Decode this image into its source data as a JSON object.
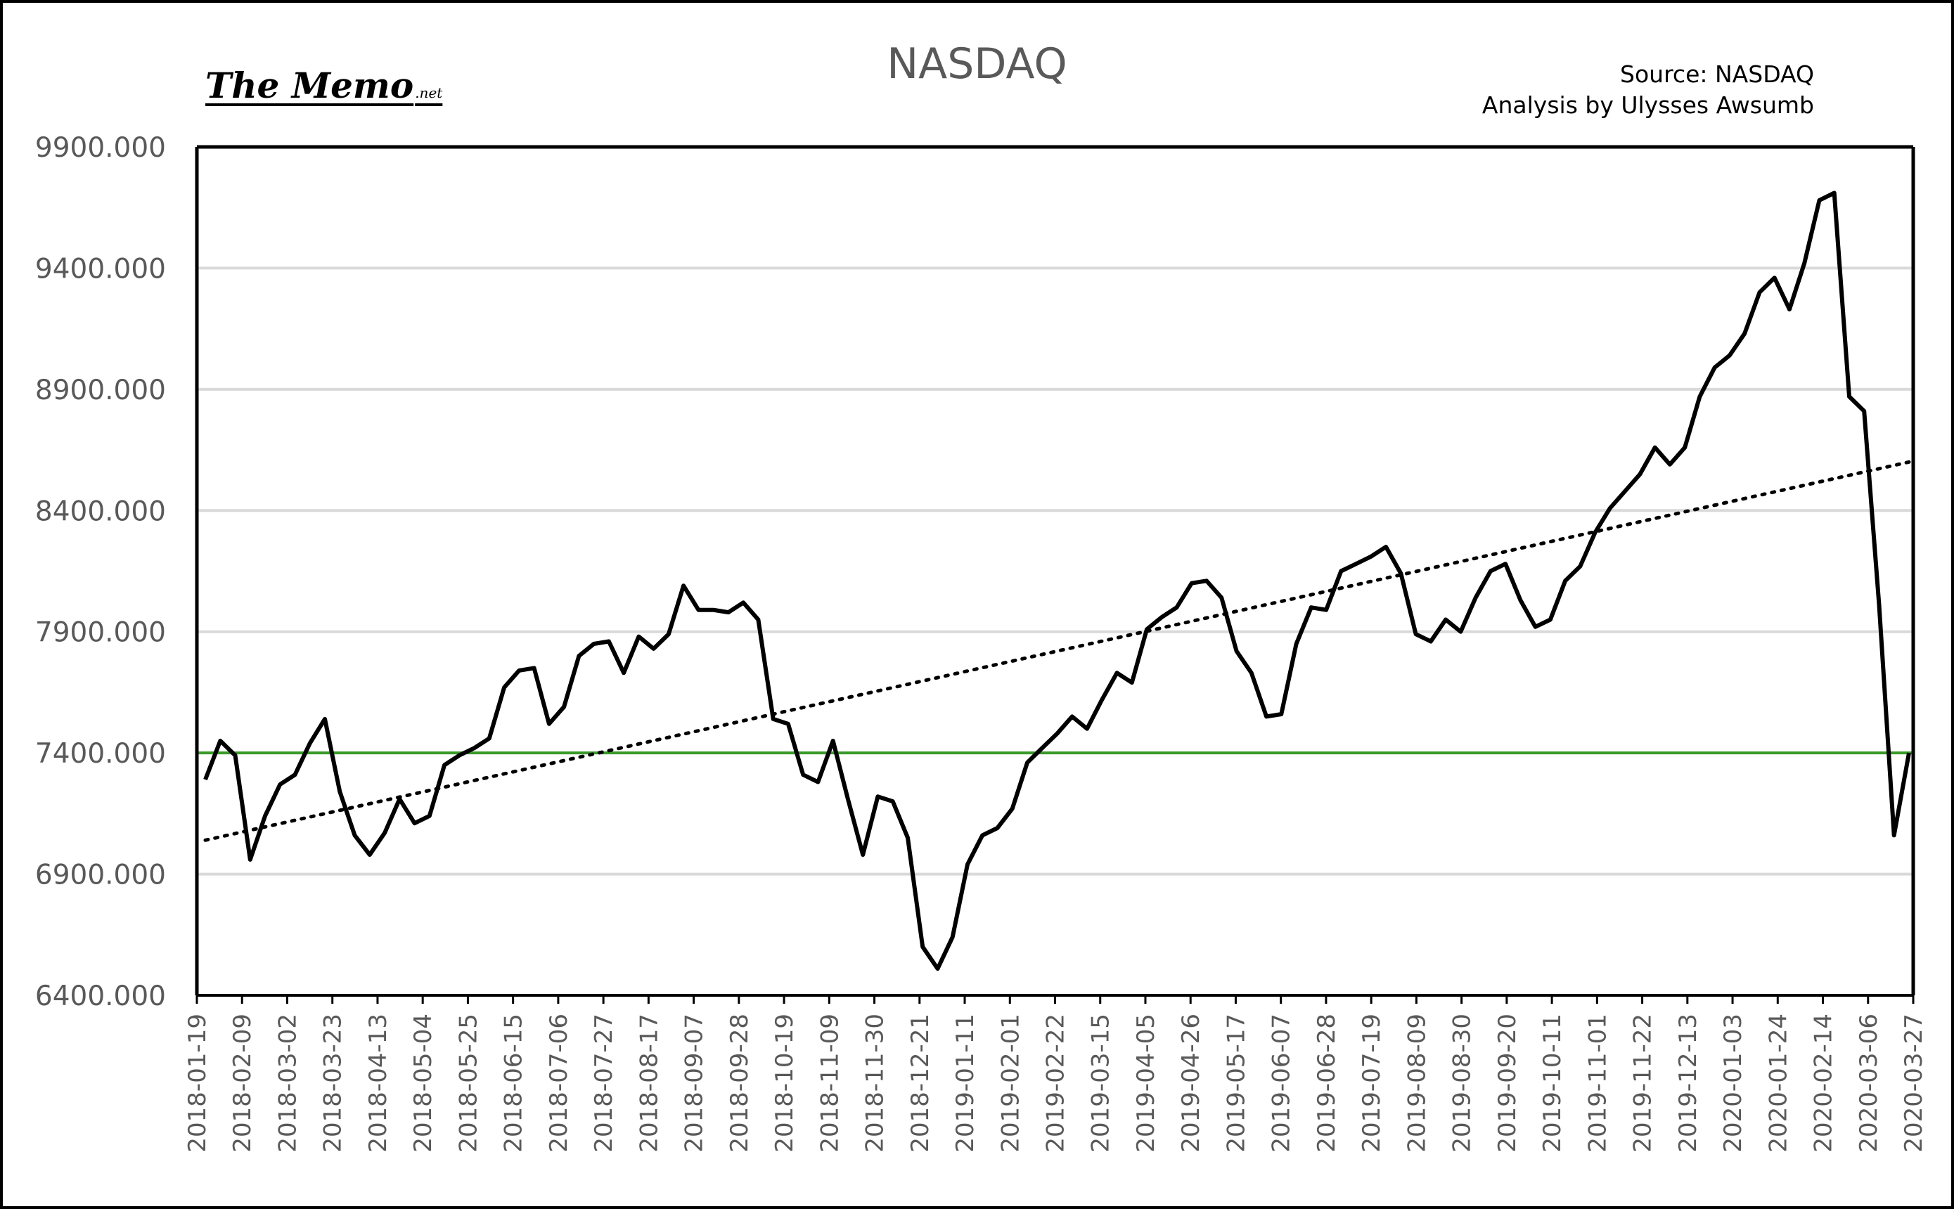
{
  "logo": {
    "text": "The Memo",
    "suffix": ".net"
  },
  "chart_data": {
    "type": "line",
    "title": "NASDAQ",
    "source_line1": "Source: NASDAQ",
    "source_line2": "Analysis by Ulysses Awsumb",
    "ylim": [
      6400,
      9900
    ],
    "yticks": [
      "9900.000",
      "9400.000",
      "8900.000",
      "8400.000",
      "7900.000",
      "7400.000",
      "6900.000",
      "6400.000"
    ],
    "ytick_values": [
      9900,
      9400,
      8900,
      8400,
      7900,
      7400,
      6900,
      6400
    ],
    "xtick_labels": [
      "2018-01-19",
      "2018-02-09",
      "2018-03-02",
      "2018-03-23",
      "2018-04-13",
      "2018-05-04",
      "2018-05-25",
      "2018-06-15",
      "2018-07-06",
      "2018-07-27",
      "2018-08-17",
      "2018-09-07",
      "2018-09-28",
      "2018-10-19",
      "2018-11-09",
      "2018-11-30",
      "2018-12-21",
      "2019-01-11",
      "2019-02-01",
      "2019-02-22",
      "2019-03-15",
      "2019-04-05",
      "2019-04-26",
      "2019-05-17",
      "2019-06-07",
      "2019-06-28",
      "2019-07-19",
      "2019-08-09",
      "2019-08-30",
      "2019-09-20",
      "2019-10-11",
      "2019-11-01",
      "2019-11-22",
      "2019-12-13",
      "2020-01-03",
      "2020-01-24",
      "2020-02-14",
      "2020-03-06",
      "2020-03-27"
    ],
    "grid": true,
    "series": [
      {
        "color": "#000000",
        "style": "solid",
        "values": [
          7290,
          7450,
          7390,
          6960,
          7140,
          7270,
          7310,
          7440,
          7540,
          7240,
          7060,
          6980,
          7070,
          7210,
          7110,
          7140,
          7350,
          7390,
          7420,
          7460,
          7670,
          7740,
          7750,
          7520,
          7590,
          7800,
          7850,
          7860,
          7730,
          7880,
          7830,
          7890,
          8090,
          7990,
          7990,
          7980,
          8020,
          7950,
          7540,
          7520,
          7310,
          7280,
          7450,
          7210,
          6980,
          7220,
          7200,
          7050,
          6600,
          6510,
          6640,
          6940,
          7060,
          7090,
          7170,
          7360,
          7420,
          7480,
          7550,
          7500,
          7620,
          7730,
          7690,
          7910,
          7960,
          8000,
          8100,
          8110,
          8040,
          7820,
          7730,
          7550,
          7560,
          7850,
          8000,
          7990,
          8150,
          8180,
          8210,
          8250,
          8140,
          7890,
          7860,
          7950,
          7900,
          8040,
          8150,
          8180,
          8030,
          7920,
          7950,
          8110,
          8170,
          8310,
          8410,
          8480,
          8550,
          8660,
          8590,
          8660,
          8870,
          8990,
          9040,
          9130,
          9300,
          9360,
          9230,
          9420,
          9680,
          9710,
          8870,
          8810,
          8010,
          7060,
          7400
        ]
      },
      {
        "name": "",
        "color": "#000000",
        "style": "dotted",
        "values_start_end": [
          7040,
          8600
        ]
      }
    ],
    "reference_line": {
      "value": 7400,
      "color": "#3a9a2a"
    }
  }
}
